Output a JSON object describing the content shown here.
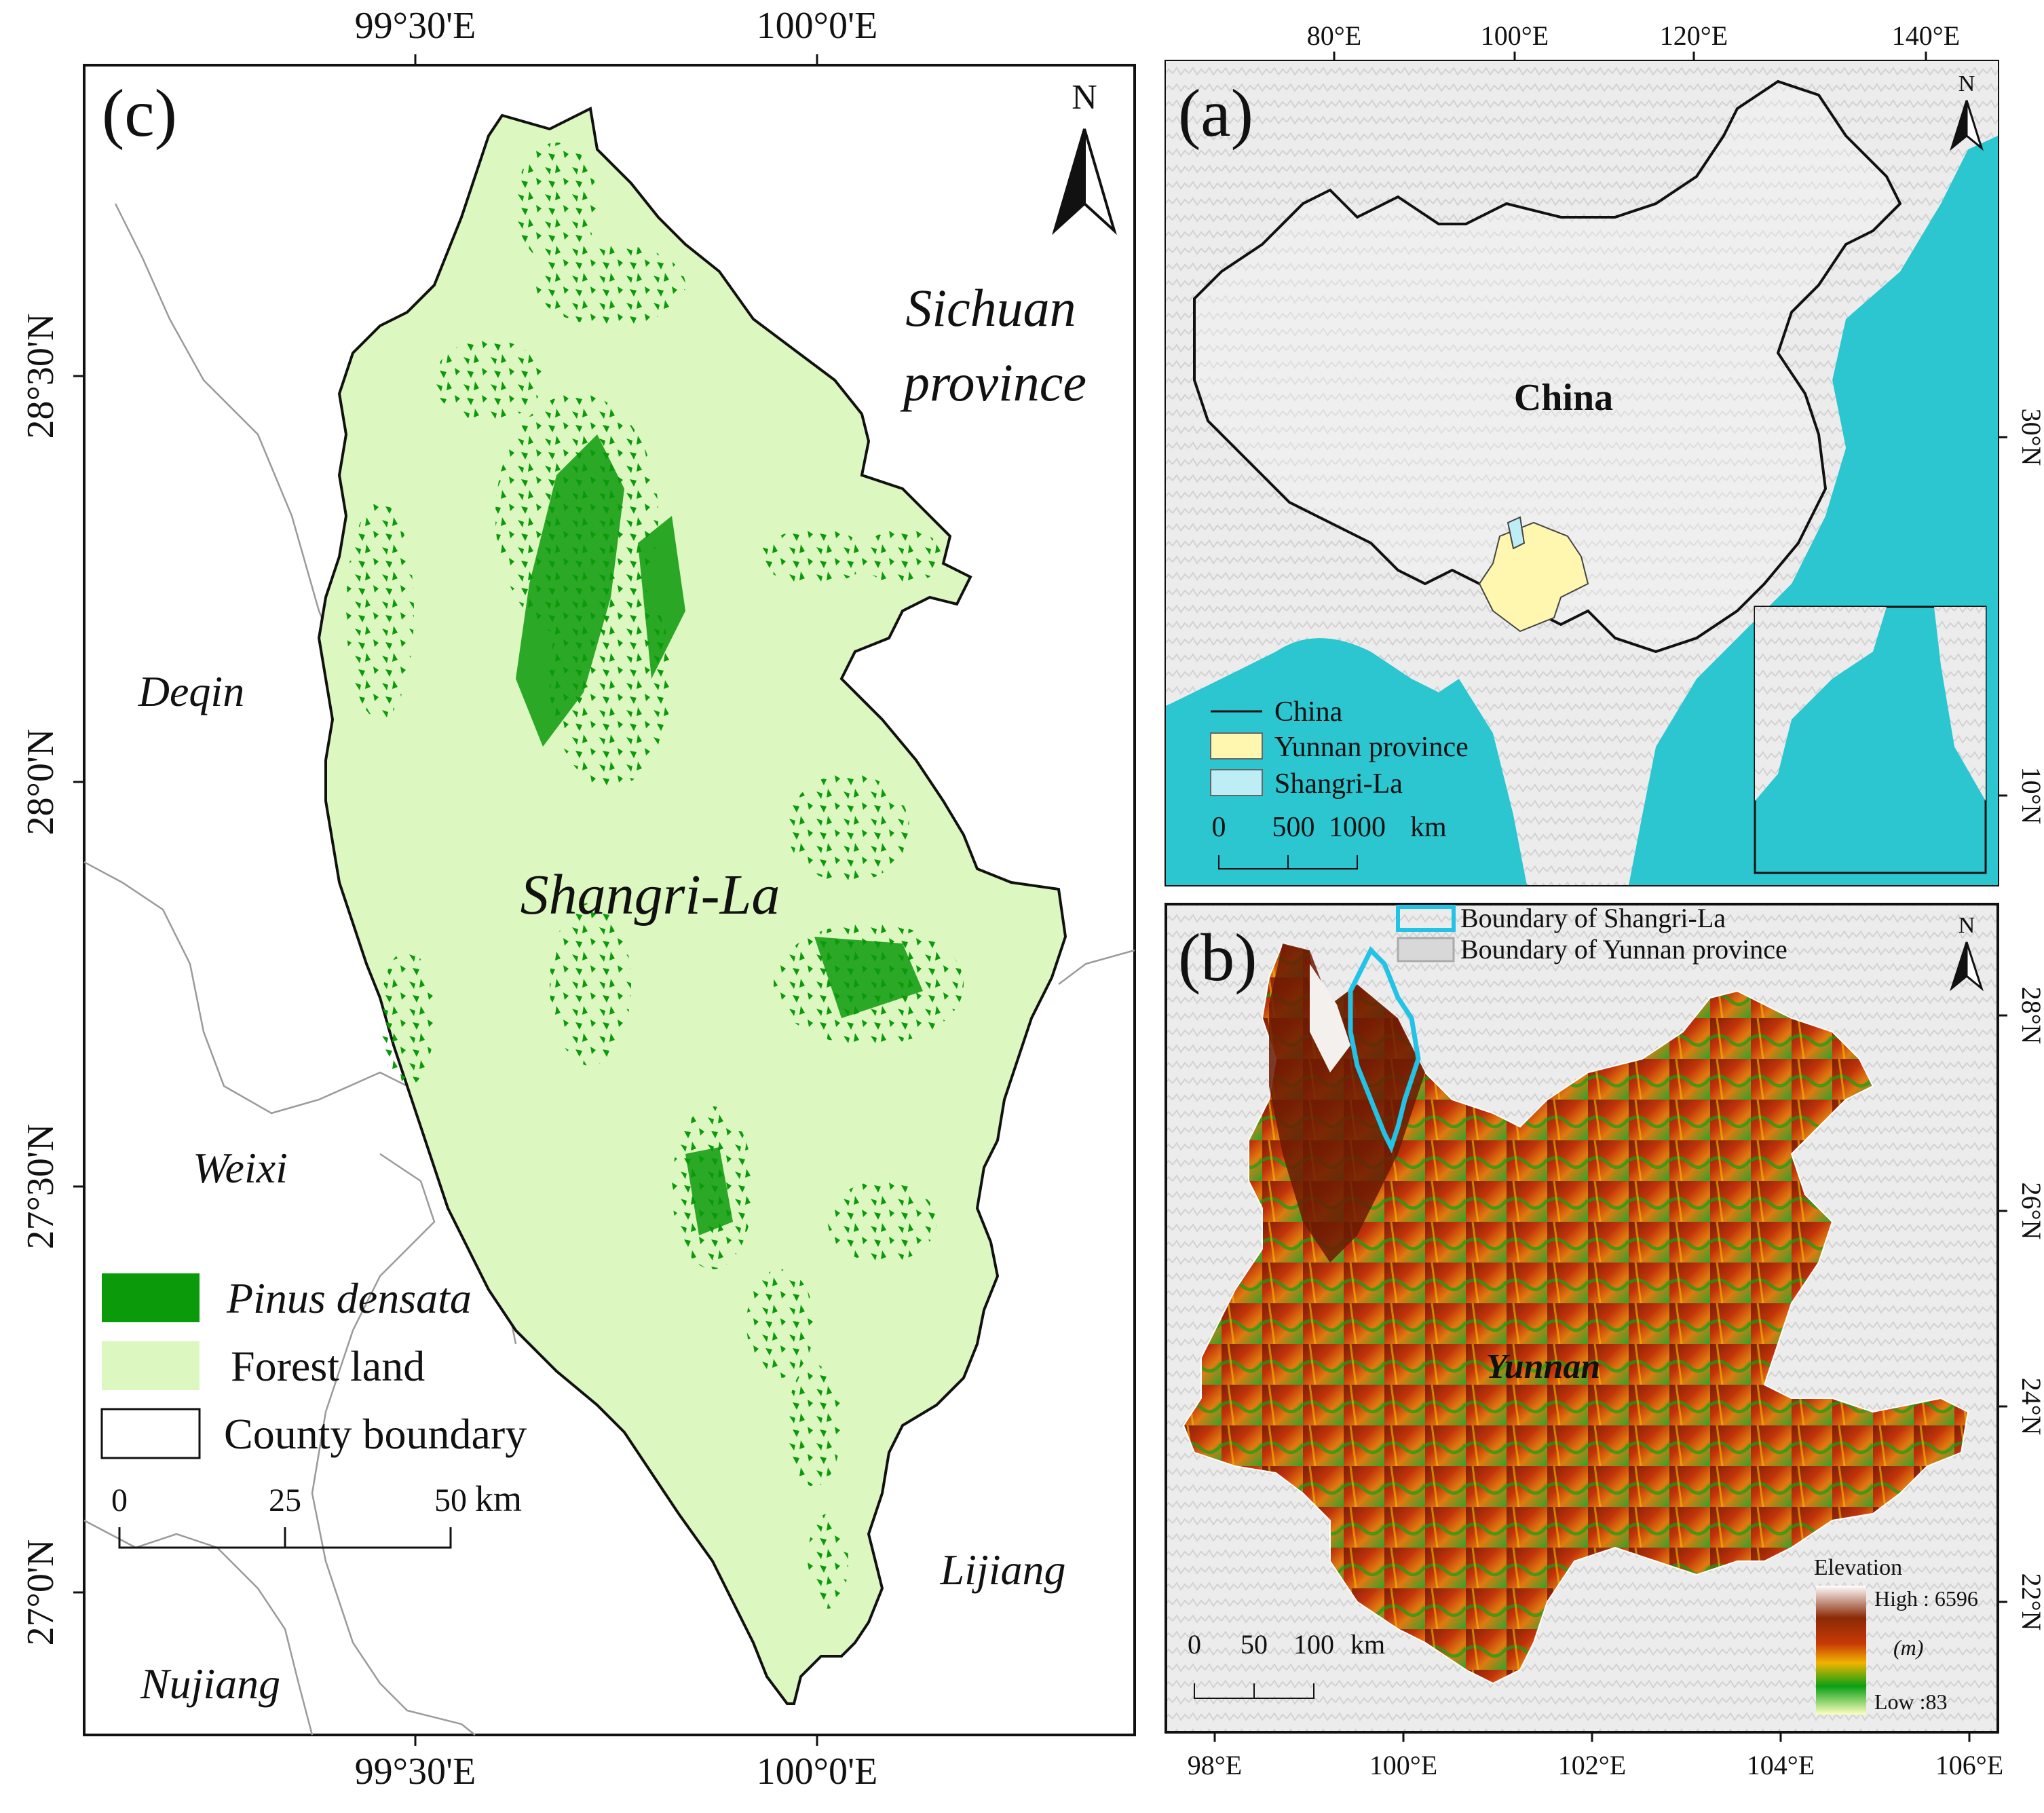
{
  "panel_c": {
    "label": "(c)",
    "top_ticks": [
      "99°30'E",
      "100°0'E"
    ],
    "bottom_ticks": [
      "99°30'E",
      "100°0'E"
    ],
    "left_ticks": [
      "28°30'N",
      "28°0'N",
      "27°30'N",
      "27°0'N"
    ],
    "north": "N",
    "place_labels": {
      "sichuan_1": "Sichuan",
      "sichuan_2": "province",
      "deqin": "Deqin",
      "weixi": "Weixi",
      "nujiang": "Nujiang",
      "lijiang": "Lijiang",
      "shangrila": "Shangri-La"
    },
    "legend": [
      {
        "label": "Pinus densata",
        "color": "#0a9a0a"
      },
      {
        "label": "Forest land",
        "color": "#dcf7c0"
      },
      {
        "label": "County boundary",
        "color": "#ffffff"
      }
    ],
    "scale": {
      "ticks": [
        "0",
        "25",
        "50"
      ],
      "unit": "km"
    }
  },
  "panel_a": {
    "label": "(a)",
    "top_ticks": [
      "80°E",
      "100°E",
      "120°E",
      "140°E"
    ],
    "right_ticks": [
      "30°N",
      "10°N"
    ],
    "north": "N",
    "country_label": "China",
    "legend": [
      {
        "label": "China",
        "color": "#111111"
      },
      {
        "label": "Yunnan province",
        "color": "#fff6b0"
      },
      {
        "label": "Shangri-La",
        "color": "#bdeef5"
      }
    ],
    "scale": {
      "ticks": [
        "0",
        "500",
        "1000"
      ],
      "unit": "km"
    }
  },
  "panel_b": {
    "label": "(b)",
    "bottom_ticks": [
      "98°E",
      "100°E",
      "102°E",
      "104°E",
      "106°E"
    ],
    "right_ticks": [
      "28°N",
      "26°N",
      "24°N",
      "22°N"
    ],
    "north": "N",
    "province_label": "Yunnan",
    "legend": [
      {
        "label": "Boundary of Shangri-La",
        "color": "#22c3e6"
      },
      {
        "label": "Boundary of Yunnan province",
        "color": "#bbbbbb"
      }
    ],
    "elevation": {
      "title": "Elevation",
      "high": "High : 6596",
      "unit": "(m)",
      "low": "Low :83"
    },
    "scale": {
      "ticks": [
        "0",
        "50",
        "100"
      ],
      "unit": "km"
    }
  }
}
